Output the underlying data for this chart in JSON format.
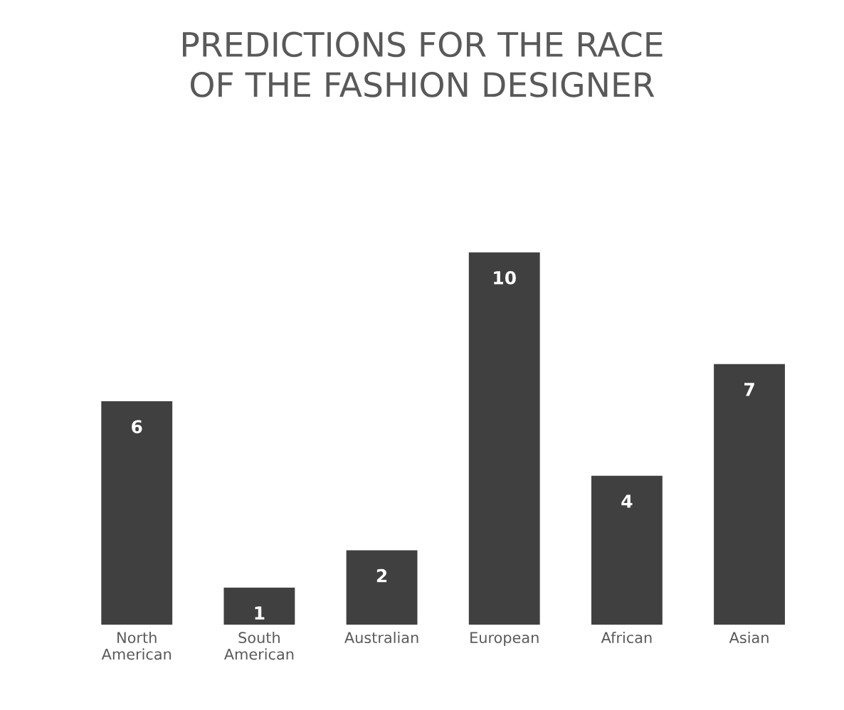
{
  "chart_data": {
    "type": "bar",
    "title": "PREDICTIONS FOR THE RACE\nOF THE FASHION DESIGNER",
    "categories": [
      "North\nAmerican",
      "South\nAmerican",
      "Australian",
      "European",
      "African",
      "Asian"
    ],
    "values": [
      6,
      1,
      2,
      10,
      4,
      7
    ],
    "color": "#404040",
    "data_labels": true,
    "grid": false,
    "legend": false
  }
}
